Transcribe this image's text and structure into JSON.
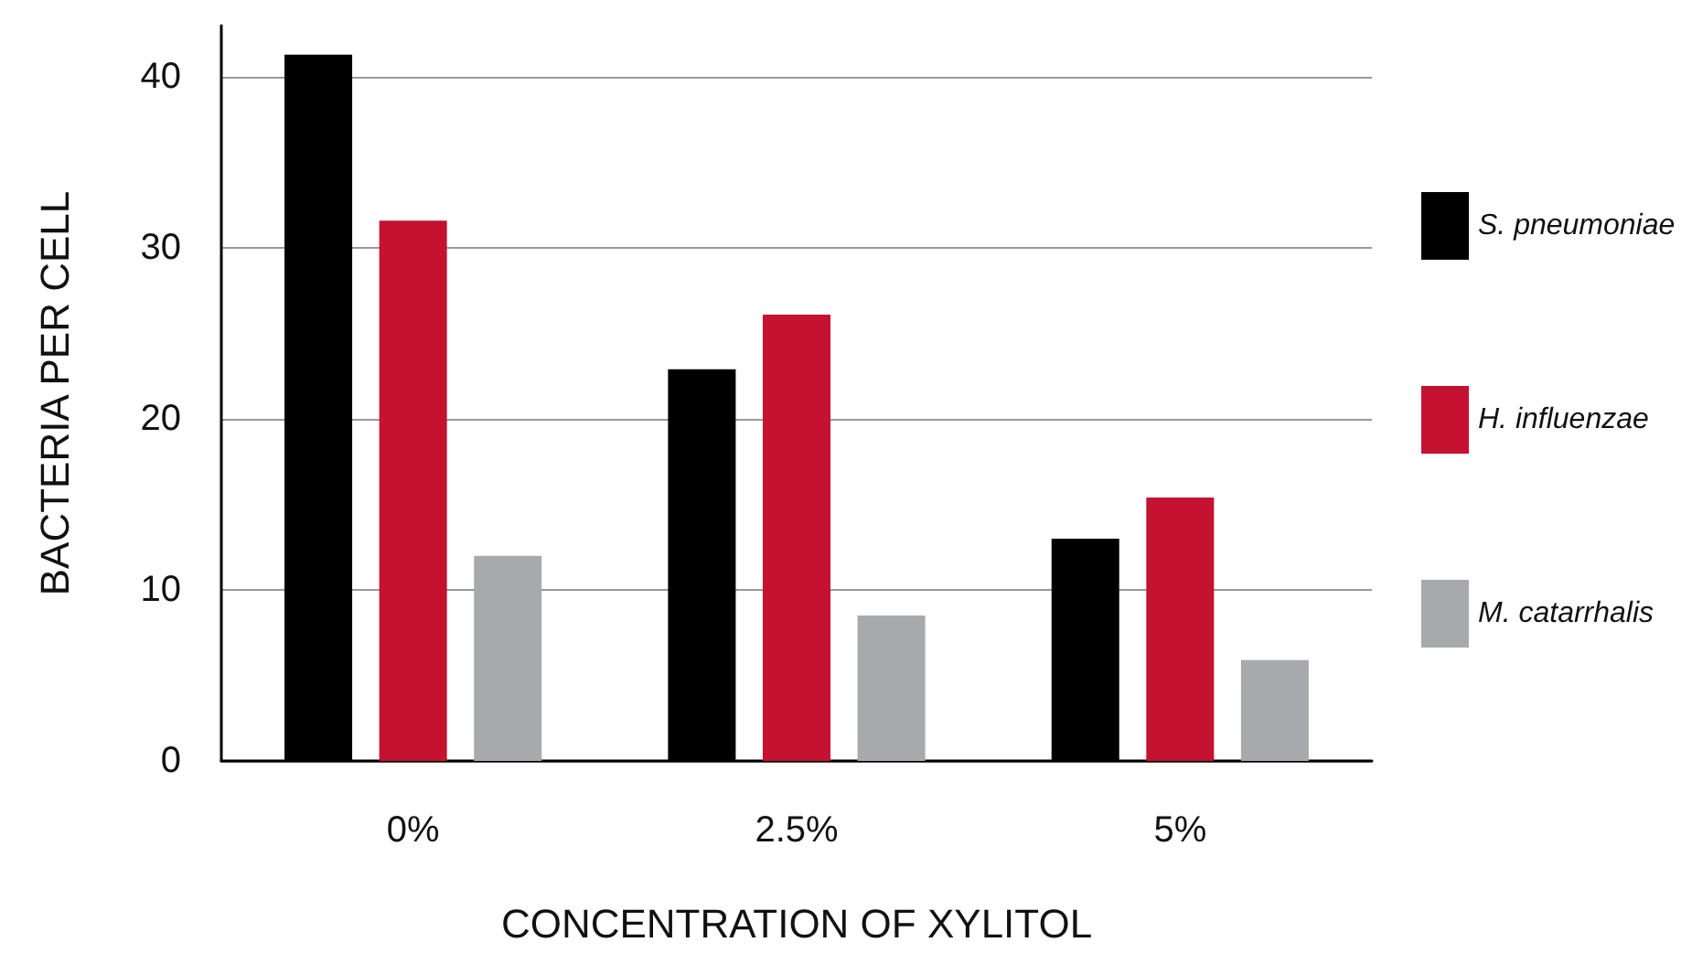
{
  "chart_data": {
    "type": "bar",
    "xlabel": "CONCENTRATION OF XYLITOL",
    "ylabel": "BACTERIA PER CELL",
    "categories": [
      "0%",
      "2.5%",
      "5%"
    ],
    "series": [
      {
        "name": "S. pneumoniae",
        "color": "#000000",
        "values": [
          41.3,
          22.9,
          13.0
        ]
      },
      {
        "name": "H. influenzae",
        "color": "#c41230",
        "values": [
          31.6,
          26.1,
          15.4
        ]
      },
      {
        "name": "M. catarrhalis",
        "color": "#a7a9ac",
        "values": [
          12.0,
          8.5,
          5.9
        ]
      }
    ],
    "ylim": [
      0,
      43
    ],
    "yticks": [
      0,
      10,
      20,
      30,
      40
    ],
    "grid": "y",
    "legend": "right"
  }
}
